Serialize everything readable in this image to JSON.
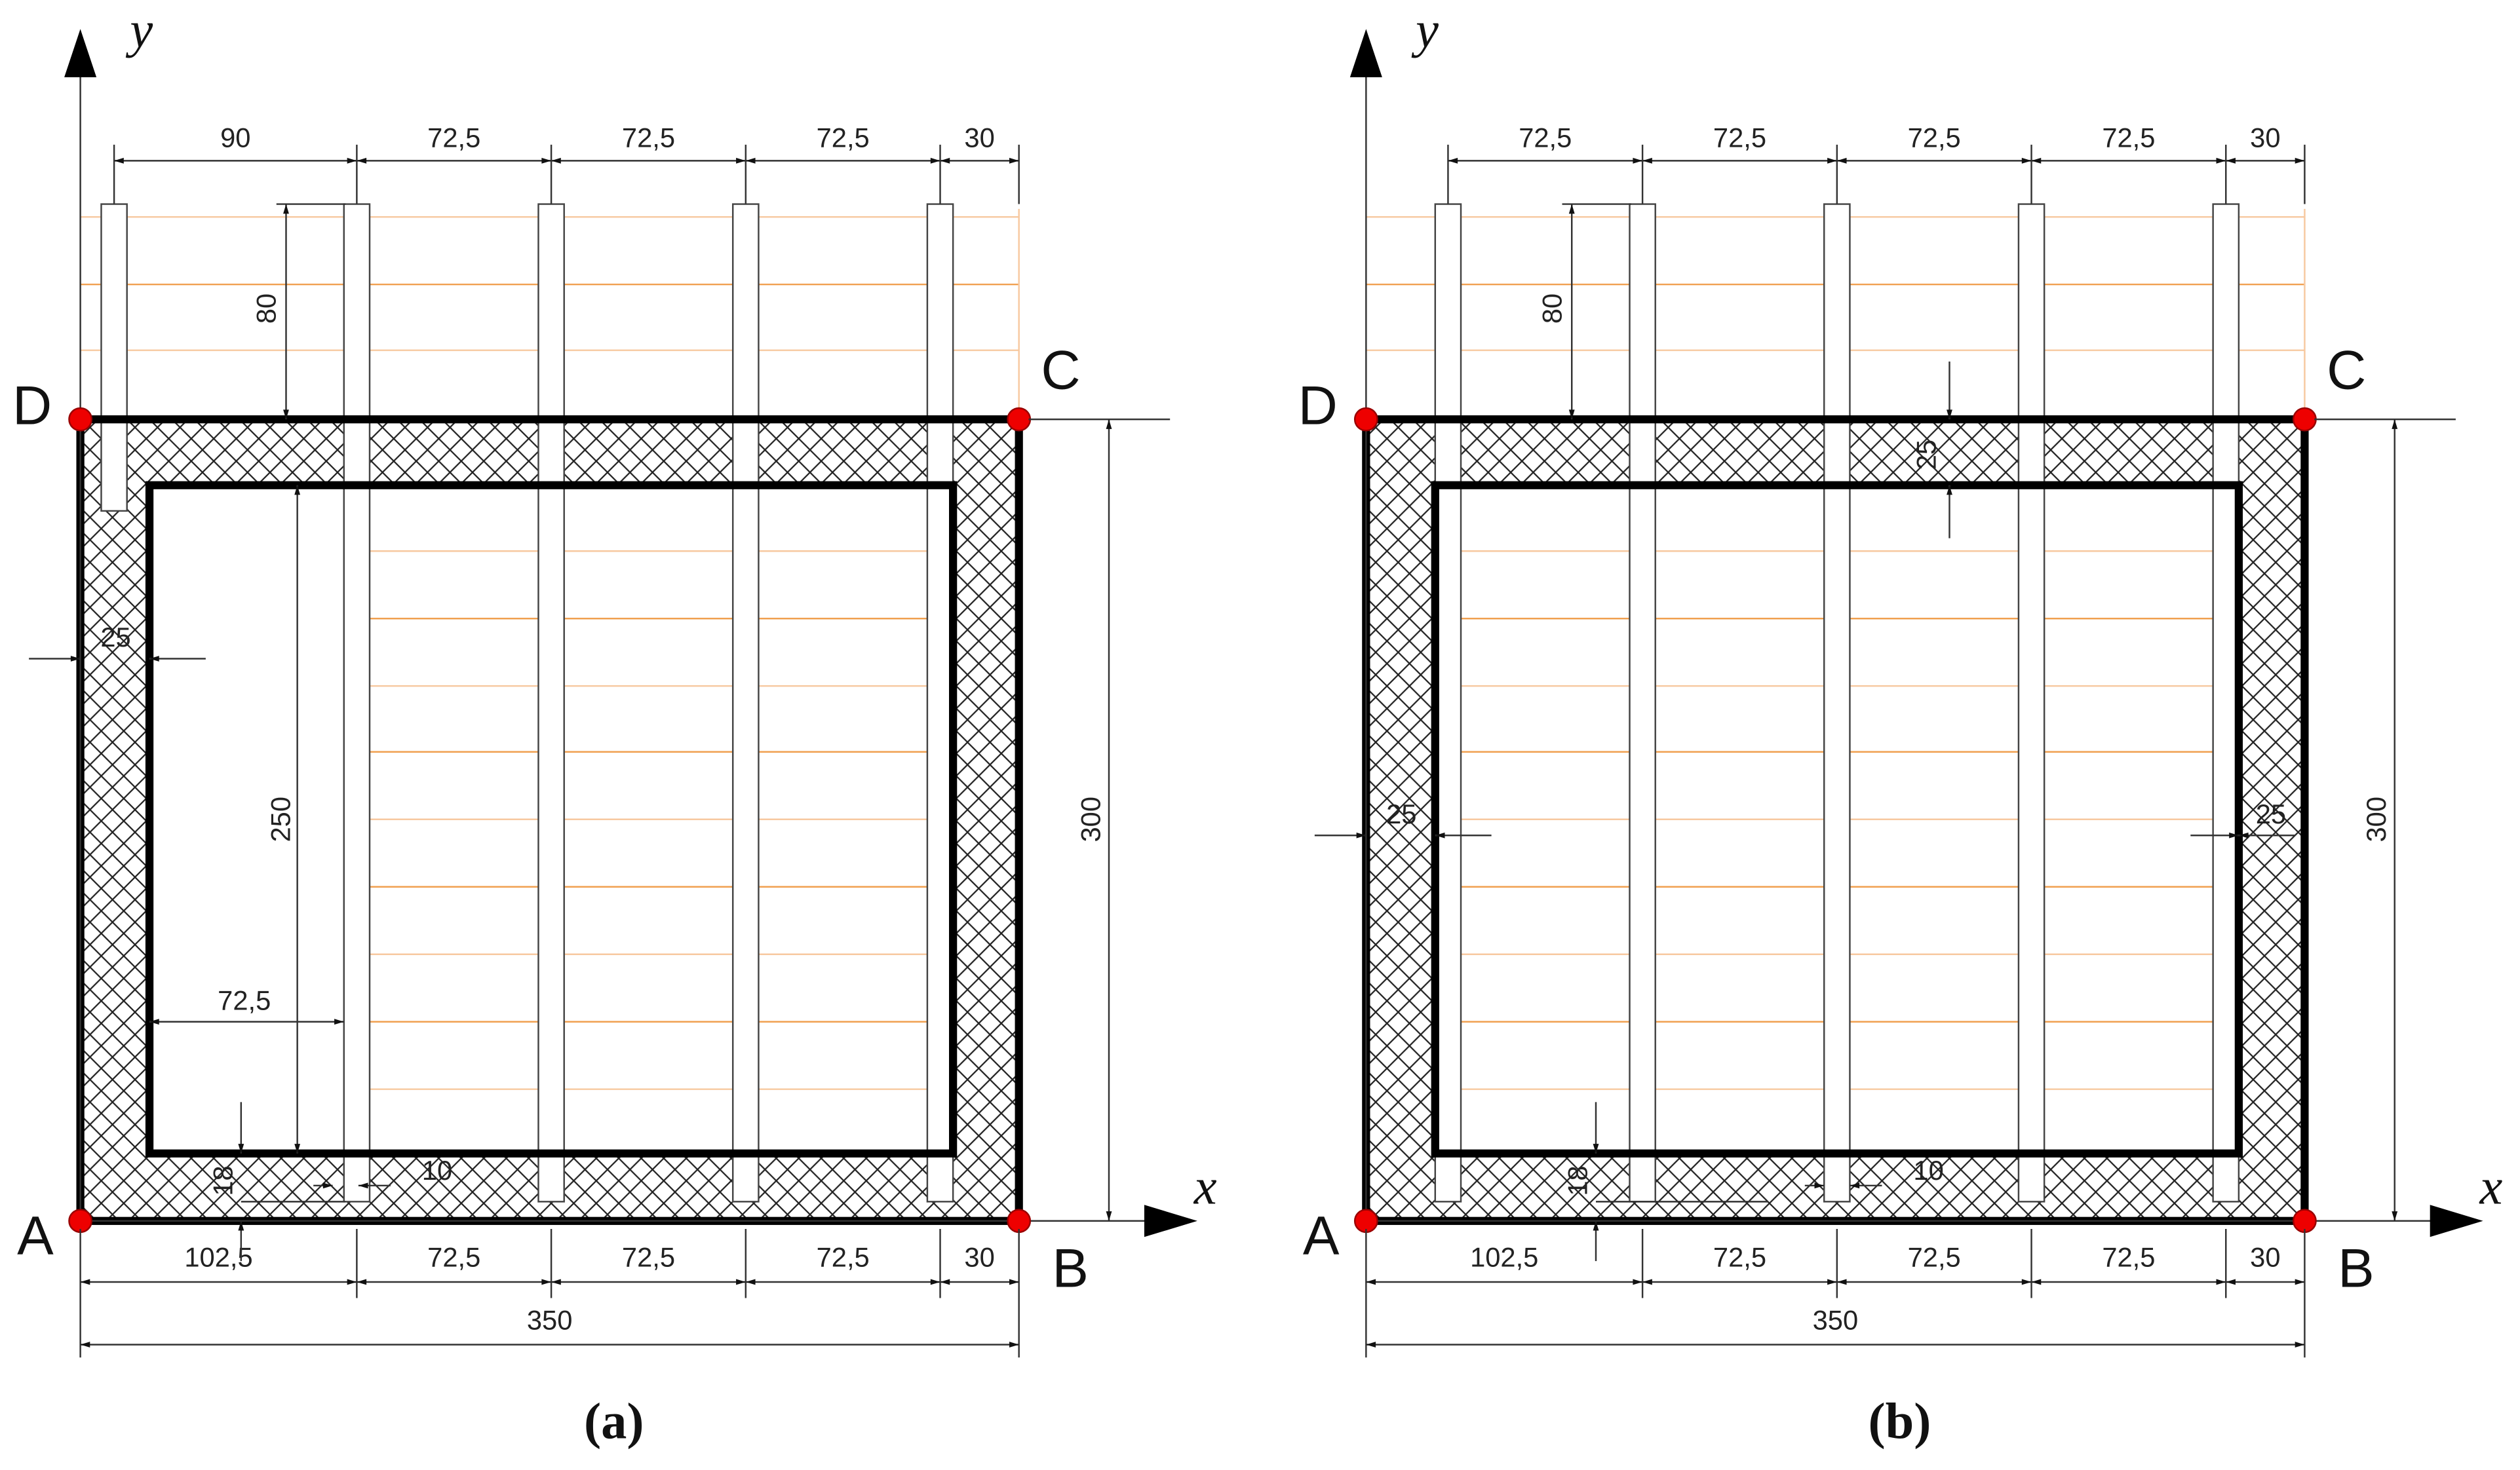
{
  "panels": [
    {
      "caption": "(a)",
      "x_axis": "x",
      "y_axis": "y",
      "corners": [
        "A",
        "B",
        "C",
        "D"
      ],
      "top_dims": [
        "90",
        "72,5",
        "72,5",
        "72,5",
        "30"
      ],
      "bottom_dims": [
        "102,5",
        "72,5",
        "72,5",
        "72,5",
        "30"
      ],
      "total": "350",
      "height": "300",
      "cover": "80",
      "walls": [
        "25"
      ],
      "inner_height": "250",
      "inner_offset": "72,5",
      "bottom_cover": "18",
      "rod_gap": "10"
    },
    {
      "caption": "(b)",
      "x_axis": "x",
      "y_axis": "y",
      "corners": [
        "A",
        "B",
        "C",
        "D"
      ],
      "top_dims": [
        "72,5",
        "72,5",
        "72,5",
        "72,5",
        "30"
      ],
      "bottom_dims": [
        "102,5",
        "72,5",
        "72,5",
        "72,5",
        "30"
      ],
      "total": "350",
      "height": "300",
      "cover": "80",
      "walls": [
        "25",
        "25",
        "25"
      ],
      "bottom_cover": "18",
      "rod_gap": "10"
    }
  ]
}
